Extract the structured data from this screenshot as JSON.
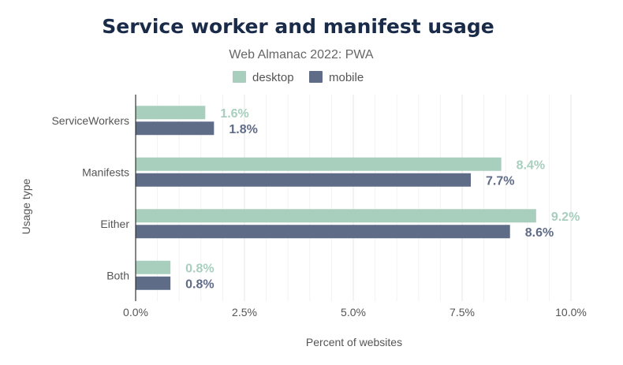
{
  "chart_data": {
    "type": "bar",
    "orientation": "horizontal",
    "title": "Service worker and manifest usage",
    "subtitle": "Web Almanac 2022: PWA",
    "xlabel": "Percent of websites",
    "ylabel": "Usage type",
    "categories": [
      "ServiceWorkers",
      "Manifests",
      "Either",
      "Both"
    ],
    "series": [
      {
        "name": "desktop",
        "color": "#a8cfbe",
        "values": [
          1.6,
          8.4,
          9.2,
          0.8
        ],
        "labels": [
          "1.6%",
          "8.4%",
          "9.2%",
          "0.8%"
        ]
      },
      {
        "name": "mobile",
        "color": "#5f6c88",
        "values": [
          1.8,
          7.7,
          8.6,
          0.8
        ],
        "labels": [
          "1.8%",
          "7.7%",
          "8.6%",
          "0.8%"
        ]
      }
    ],
    "xlim": [
      0,
      10
    ],
    "xticks": [
      0,
      2.5,
      5,
      7.5,
      10
    ],
    "xtick_labels": [
      "0.0%",
      "2.5%",
      "5.0%",
      "7.5%",
      "10.0%"
    ],
    "grid": true,
    "legend_position": "top-center"
  }
}
